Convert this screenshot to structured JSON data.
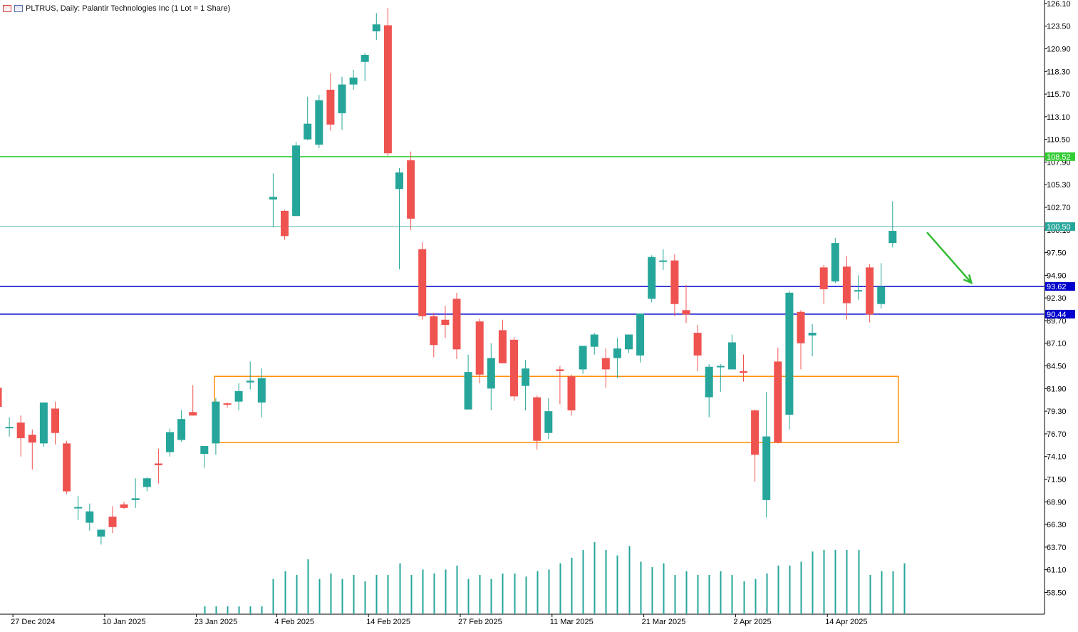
{
  "header": {
    "title": "PLTRUS, Daily:  Palantir Technologies Inc (1 Lot = 1 Share)"
  },
  "colors": {
    "bull": "#26a69a",
    "bear": "#ef5350",
    "resistance_line": "#33cc33",
    "price_line": "#26a69a",
    "support_lines": "#0000cc",
    "box": "#ff8c00",
    "arrow": "#33bb33",
    "volume": "#26a69a"
  },
  "chart_data": {
    "type": "candlestick",
    "symbol": "PLTRUS",
    "timeframe": "Daily",
    "ylim": [
      56.0,
      126.5
    ],
    "y_ticks": [
      "126.10",
      "123.50",
      "120.90",
      "118.30",
      "115.70",
      "113.10",
      "110.50",
      "107.90",
      "105.30",
      "102.70",
      "100.10",
      "97.50",
      "94.90",
      "92.30",
      "89.70",
      "87.10",
      "84.50",
      "81.90",
      "79.30",
      "76.70",
      "74.10",
      "71.50",
      "68.90",
      "66.30",
      "63.70",
      "61.10",
      "58.50"
    ],
    "x_labels": [
      "27 Dec 2024",
      "10 Jan 2025",
      "23 Jan 2025",
      "4 Feb 2025",
      "14 Feb 2025",
      "27 Feb 2025",
      "11 Mar 2025",
      "21 Mar 2025",
      "2 Apr 2025",
      "14 Apr 2025"
    ],
    "candles": [
      {
        "o": 82.0,
        "h": 82.7,
        "l": 79.5,
        "c": 79.8
      },
      {
        "o": 77.4,
        "h": 78.6,
        "l": 76.4,
        "c": 77.5
      },
      {
        "o": 78.0,
        "h": 78.8,
        "l": 74.1,
        "c": 76.2
      },
      {
        "o": 76.6,
        "h": 77.2,
        "l": 72.6,
        "c": 75.7
      },
      {
        "o": 75.6,
        "h": 80.3,
        "l": 75.2,
        "c": 80.3
      },
      {
        "o": 79.6,
        "h": 80.4,
        "l": 75.5,
        "c": 76.8
      },
      {
        "o": 75.6,
        "h": 75.9,
        "l": 69.8,
        "c": 70.1
      },
      {
        "o": 68.2,
        "h": 69.6,
        "l": 66.8,
        "c": 68.3
      },
      {
        "o": 66.5,
        "h": 68.7,
        "l": 65.6,
        "c": 67.8
      },
      {
        "o": 64.9,
        "h": 65.7,
        "l": 64.0,
        "c": 65.7
      },
      {
        "o": 67.2,
        "h": 68.4,
        "l": 65.3,
        "c": 66.0
      },
      {
        "o": 68.6,
        "h": 68.9,
        "l": 68.1,
        "c": 68.2
      },
      {
        "o": 69.1,
        "h": 71.6,
        "l": 68.2,
        "c": 69.3
      },
      {
        "o": 70.6,
        "h": 71.7,
        "l": 70.1,
        "c": 71.6
      },
      {
        "o": 73.3,
        "h": 75.0,
        "l": 71.0,
        "c": 73.1
      },
      {
        "o": 74.6,
        "h": 77.3,
        "l": 74.1,
        "c": 76.9
      },
      {
        "o": 76.0,
        "h": 79.4,
        "l": 75.8,
        "c": 78.4
      },
      {
        "o": 79.2,
        "h": 82.3,
        "l": 78.8,
        "c": 78.8
      },
      {
        "o": 74.4,
        "h": 75.3,
        "l": 72.8,
        "c": 75.3
      },
      {
        "o": 75.6,
        "h": 80.8,
        "l": 74.3,
        "c": 80.4
      },
      {
        "o": 80.2,
        "h": 80.3,
        "l": 79.7,
        "c": 80.1
      },
      {
        "o": 80.4,
        "h": 82.5,
        "l": 79.4,
        "c": 81.6
      },
      {
        "o": 82.6,
        "h": 85.0,
        "l": 81.8,
        "c": 82.8
      },
      {
        "o": 80.3,
        "h": 84.2,
        "l": 78.6,
        "c": 83.1
      },
      {
        "o": 103.6,
        "h": 106.6,
        "l": 100.4,
        "c": 103.9
      },
      {
        "o": 102.3,
        "h": 102.4,
        "l": 99.0,
        "c": 99.4
      },
      {
        "o": 101.7,
        "h": 110.2,
        "l": 101.7,
        "c": 109.8
      },
      {
        "o": 110.5,
        "h": 115.4,
        "l": 110.4,
        "c": 112.3
      },
      {
        "o": 109.9,
        "h": 115.6,
        "l": 109.5,
        "c": 115.0
      },
      {
        "o": 116.2,
        "h": 118.1,
        "l": 111.5,
        "c": 112.2
      },
      {
        "o": 113.5,
        "h": 117.7,
        "l": 111.6,
        "c": 116.8
      },
      {
        "o": 116.8,
        "h": 118.5,
        "l": 116.2,
        "c": 117.6
      },
      {
        "o": 119.4,
        "h": 120.4,
        "l": 117.2,
        "c": 120.2
      },
      {
        "o": 122.9,
        "h": 125.0,
        "l": 121.9,
        "c": 123.7
      },
      {
        "o": 123.6,
        "h": 125.6,
        "l": 108.6,
        "c": 108.9
      },
      {
        "o": 104.8,
        "h": 107.2,
        "l": 95.6,
        "c": 106.7
      },
      {
        "o": 108.1,
        "h": 109.1,
        "l": 100.1,
        "c": 101.4
      },
      {
        "o": 97.9,
        "h": 98.7,
        "l": 89.8,
        "c": 90.2
      },
      {
        "o": 90.2,
        "h": 90.6,
        "l": 85.5,
        "c": 86.9
      },
      {
        "o": 89.8,
        "h": 91.4,
        "l": 87.7,
        "c": 89.2
      },
      {
        "o": 92.2,
        "h": 92.9,
        "l": 85.3,
        "c": 86.4
      },
      {
        "o": 79.5,
        "h": 85.8,
        "l": 79.5,
        "c": 83.8
      },
      {
        "o": 89.6,
        "h": 89.9,
        "l": 82.5,
        "c": 83.5
      },
      {
        "o": 81.9,
        "h": 87.1,
        "l": 79.4,
        "c": 85.4
      },
      {
        "o": 88.6,
        "h": 89.8,
        "l": 84.8,
        "c": 84.8
      },
      {
        "o": 87.5,
        "h": 87.8,
        "l": 80.5,
        "c": 81.0
      },
      {
        "o": 82.2,
        "h": 85.2,
        "l": 79.4,
        "c": 84.2
      },
      {
        "o": 80.9,
        "h": 81.1,
        "l": 74.9,
        "c": 75.9
      },
      {
        "o": 76.8,
        "h": 80.8,
        "l": 76.1,
        "c": 79.3
      },
      {
        "o": 84.1,
        "h": 84.5,
        "l": 80.1,
        "c": 83.9
      },
      {
        "o": 83.3,
        "h": 83.5,
        "l": 78.8,
        "c": 79.4
      },
      {
        "o": 84.1,
        "h": 86.8,
        "l": 83.6,
        "c": 86.8
      },
      {
        "o": 86.7,
        "h": 88.3,
        "l": 85.8,
        "c": 88.1
      },
      {
        "o": 85.4,
        "h": 86.5,
        "l": 82.0,
        "c": 84.1
      },
      {
        "o": 85.4,
        "h": 87.7,
        "l": 83.1,
        "c": 86.5
      },
      {
        "o": 86.4,
        "h": 87.8,
        "l": 86.0,
        "c": 88.1
      },
      {
        "o": 85.7,
        "h": 90.5,
        "l": 84.9,
        "c": 90.5
      },
      {
        "o": 92.2,
        "h": 97.2,
        "l": 91.8,
        "c": 97.0
      },
      {
        "o": 96.5,
        "h": 97.9,
        "l": 95.5,
        "c": 96.6
      },
      {
        "o": 96.6,
        "h": 97.3,
        "l": 90.2,
        "c": 91.6
      },
      {
        "o": 90.9,
        "h": 93.8,
        "l": 89.4,
        "c": 90.4
      },
      {
        "o": 88.3,
        "h": 89.2,
        "l": 83.9,
        "c": 85.7
      },
      {
        "o": 80.9,
        "h": 84.7,
        "l": 78.6,
        "c": 84.4
      },
      {
        "o": 84.5,
        "h": 84.7,
        "l": 81.5,
        "c": 84.5
      },
      {
        "o": 84.1,
        "h": 88.1,
        "l": 84.1,
        "c": 87.2
      },
      {
        "o": 83.9,
        "h": 85.8,
        "l": 82.7,
        "c": 83.7
      },
      {
        "o": 79.4,
        "h": 79.5,
        "l": 71.2,
        "c": 74.3
      },
      {
        "o": 69.1,
        "h": 81.5,
        "l": 67.1,
        "c": 76.4
      },
      {
        "o": 85.0,
        "h": 86.6,
        "l": 75.6,
        "c": 75.7
      },
      {
        "o": 78.9,
        "h": 93.1,
        "l": 77.2,
        "c": 92.9
      },
      {
        "o": 90.7,
        "h": 90.9,
        "l": 84.1,
        "c": 87.1
      },
      {
        "o": 88.0,
        "h": 89.3,
        "l": 85.6,
        "c": 88.3
      },
      {
        "o": 95.8,
        "h": 96.1,
        "l": 91.6,
        "c": 93.3
      },
      {
        "o": 94.2,
        "h": 99.2,
        "l": 94.0,
        "c": 98.6
      },
      {
        "o": 95.9,
        "h": 97.1,
        "l": 89.8,
        "c": 91.7
      },
      {
        "o": 93.1,
        "h": 94.9,
        "l": 92.1,
        "c": 93.2
      },
      {
        "o": 95.8,
        "h": 96.2,
        "l": 89.5,
        "c": 90.4
      },
      {
        "o": 91.6,
        "h": 96.3,
        "l": 91.1,
        "c": 93.6
      },
      {
        "o": 98.6,
        "h": 103.4,
        "l": 98.1,
        "c": 100.0
      }
    ],
    "volume": [
      0,
      0,
      0,
      0,
      0,
      0,
      0,
      0,
      0,
      0,
      0,
      0,
      0,
      0,
      0,
      0,
      0,
      0,
      0.1,
      0.1,
      0.1,
      0.1,
      0.1,
      0.1,
      0.45,
      0.55,
      0.5,
      0.7,
      0.45,
      0.52,
      0.45,
      0.5,
      0.42,
      0.5,
      0.5,
      0.65,
      0.5,
      0.57,
      0.52,
      0.57,
      0.62,
      0.45,
      0.5,
      0.45,
      0.52,
      0.52,
      0.48,
      0.55,
      0.57,
      0.65,
      0.72,
      0.82,
      0.92,
      0.82,
      0.75,
      0.87,
      0.67,
      0.6,
      0.65,
      0.5,
      0.55,
      0.5,
      0.5,
      0.55,
      0.5,
      0.42,
      0.45,
      0.52,
      0.62,
      0.62,
      0.67,
      0.8,
      0.82,
      0.82,
      0.82,
      0.82,
      0.5,
      0.55,
      0.55,
      0.65
    ],
    "horizontal_lines": [
      {
        "price": 108.52,
        "label": "108.52",
        "color": "#33cc33",
        "width": 1.5
      },
      {
        "price": 100.5,
        "label": "100.50",
        "color": "#26a69a",
        "width": 0.8
      },
      {
        "price": 93.62,
        "label": "93.62",
        "color": "#0000cc",
        "width": 1.5
      },
      {
        "price": 90.44,
        "label": "90.44",
        "color": "#0000cc",
        "width": 1.5
      }
    ],
    "rectangle": {
      "start_index": 19,
      "end_index": 78,
      "price_top": 83.3,
      "price_bottom": 75.7,
      "color": "#ff8c00"
    },
    "arrow": {
      "from_index": 80,
      "from_price": 100.0,
      "to_index": 84,
      "to_price": 94.2,
      "color": "#33bb33"
    }
  }
}
